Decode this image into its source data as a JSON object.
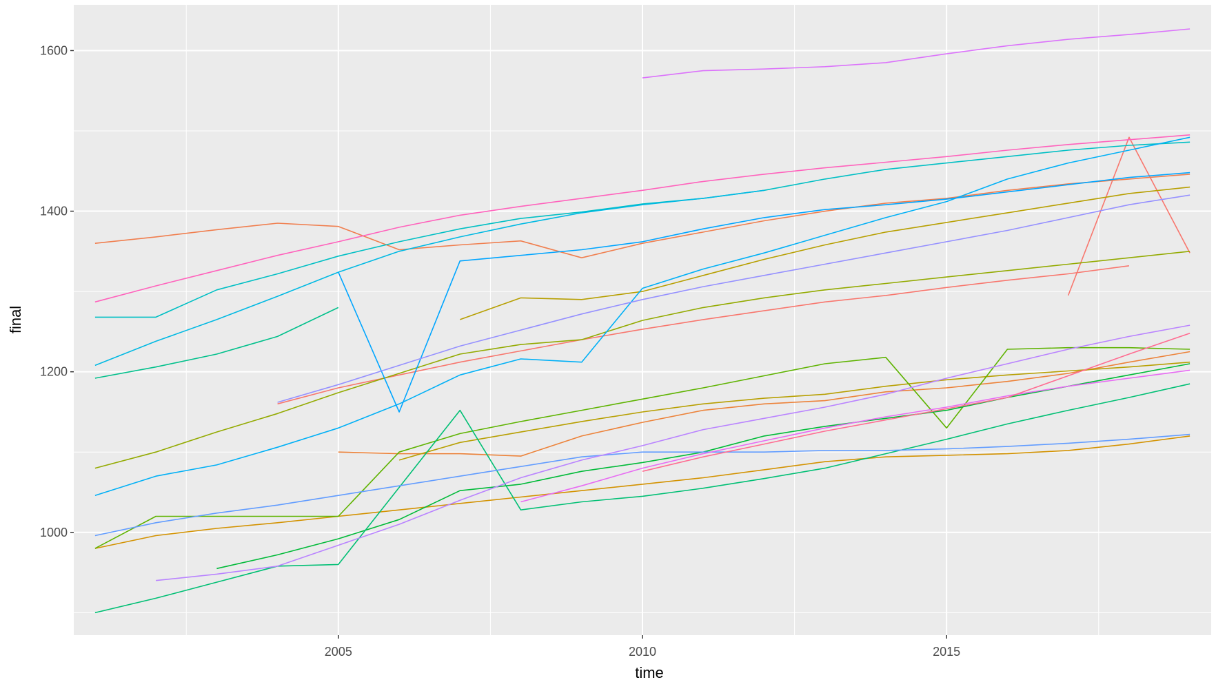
{
  "chart_data": {
    "type": "line",
    "title": "",
    "xlabel": "time",
    "ylabel": "final",
    "xlim": [
      2000.65,
      2019.35
    ],
    "ylim": [
      872,
      1657
    ],
    "x_ticks": [
      2005,
      2010,
      2015
    ],
    "x_tick_labels": [
      "2005",
      "2010",
      "2015"
    ],
    "y_ticks": [
      1000,
      1200,
      1400,
      1600
    ],
    "y_tick_labels": [
      "1000",
      "1200",
      "1400",
      "1600"
    ],
    "grid": true,
    "legend": "none",
    "background": "#ebebeb",
    "series": [
      {
        "color": "#F8766D",
        "x": [
          2017,
          2018,
          2019
        ],
        "y": [
          1295,
          1492,
          1348
        ]
      },
      {
        "color": "#F07E4E",
        "x": [
          2001,
          2002,
          2003,
          2004,
          2005,
          2006,
          2007,
          2008,
          2009,
          2010,
          2011,
          2012,
          2013,
          2014,
          2015,
          2016,
          2017,
          2018,
          2019
        ],
        "y": [
          1360,
          1368,
          1377,
          1385,
          1381,
          1352,
          1358,
          1363,
          1342,
          1360,
          1374,
          1388,
          1400,
          1410,
          1416,
          1426,
          1434,
          1440,
          1446
        ]
      },
      {
        "color": "#EC8239",
        "x": [
          2005,
          2006,
          2007,
          2008,
          2009,
          2010,
          2011,
          2012,
          2013,
          2014,
          2015,
          2016,
          2017,
          2018,
          2019
        ],
        "y": [
          1100,
          1098,
          1098,
          1095,
          1120,
          1137,
          1152,
          1160,
          1164,
          1175,
          1180,
          1188,
          1198,
          1212,
          1225
        ]
      },
      {
        "color": "#F8766D",
        "x": [
          2004,
          2005,
          2006,
          2007,
          2008,
          2009,
          2010,
          2011,
          2012,
          2013,
          2014,
          2015,
          2016,
          2017,
          2018
        ],
        "y": [
          1160,
          1180,
          1196,
          1212,
          1226,
          1240,
          1253,
          1265,
          1276,
          1287,
          1295,
          1305,
          1314,
          1322,
          1332
        ]
      },
      {
        "color": "#D39200",
        "x": [
          2001,
          2002,
          2003,
          2004,
          2005,
          2006,
          2007,
          2008,
          2009,
          2010,
          2011,
          2012,
          2013,
          2014,
          2015,
          2016,
          2017,
          2018,
          2019
        ],
        "y": [
          980,
          996,
          1005,
          1012,
          1020,
          1028,
          1036,
          1044,
          1052,
          1060,
          1068,
          1078,
          1088,
          1094,
          1096,
          1098,
          1102,
          1110,
          1120
        ]
      },
      {
        "color": "#B79F00",
        "x": [
          2006,
          2007,
          2008,
          2009,
          2010,
          2011,
          2012,
          2013,
          2014,
          2015,
          2016,
          2017,
          2018,
          2019
        ],
        "y": [
          1090,
          1112,
          1125,
          1138,
          1150,
          1160,
          1167,
          1172,
          1182,
          1190,
          1196,
          1201,
          1206,
          1212
        ]
      },
      {
        "color": "#B79F00",
        "x": [
          2007,
          2008,
          2009,
          2010,
          2011,
          2012,
          2013,
          2014,
          2015,
          2016,
          2017,
          2018,
          2019
        ],
        "y": [
          1265,
          1292,
          1290,
          1300,
          1320,
          1340,
          1358,
          1374,
          1386,
          1398,
          1410,
          1422,
          1430
        ]
      },
      {
        "color": "#93AA00",
        "x": [
          2001,
          2002,
          2003,
          2004,
          2005,
          2006,
          2007,
          2008,
          2009,
          2010,
          2011,
          2012,
          2013,
          2014,
          2015,
          2016,
          2017,
          2018,
          2019
        ],
        "y": [
          1080,
          1100,
          1125,
          1148,
          1174,
          1198,
          1222,
          1234,
          1240,
          1264,
          1280,
          1292,
          1302,
          1310,
          1318,
          1326,
          1334,
          1342,
          1350
        ]
      },
      {
        "color": "#5EB300",
        "x": [
          2001,
          2002,
          2003,
          2004,
          2005,
          2006,
          2007,
          2008,
          2009,
          2010,
          2011,
          2012,
          2013,
          2014,
          2015,
          2016,
          2017,
          2018,
          2019
        ],
        "y": [
          980,
          1020,
          1020,
          1020,
          1020,
          1100,
          1123,
          1138,
          1152,
          1166,
          1180,
          1195,
          1210,
          1218,
          1130,
          1228,
          1230,
          1230,
          1228
        ]
      },
      {
        "color": "#00BA38",
        "x": [
          2003,
          2004,
          2005,
          2006,
          2007,
          2008,
          2009,
          2010,
          2011,
          2012,
          2013,
          2014,
          2015,
          2016,
          2017,
          2018,
          2019
        ],
        "y": [
          955,
          972,
          992,
          1016,
          1052,
          1060,
          1076,
          1087,
          1100,
          1120,
          1132,
          1142,
          1152,
          1168,
          1182,
          1196,
          1210
        ]
      },
      {
        "color": "#00BF74",
        "x": [
          2001,
          2002,
          2003,
          2004,
          2005,
          2006,
          2007,
          2008,
          2009,
          2010,
          2011,
          2012,
          2013,
          2014,
          2015,
          2016,
          2017,
          2018,
          2019
        ],
        "y": [
          900,
          918,
          938,
          958,
          960,
          1056,
          1152,
          1028,
          1038,
          1045,
          1055,
          1067,
          1080,
          1098,
          1116,
          1135,
          1152,
          1168,
          1185
        ]
      },
      {
        "color": "#00C08B",
        "x": [
          2001,
          2002,
          2003,
          2004,
          2005
        ],
        "y": [
          1192,
          1206,
          1222,
          1244,
          1280
        ]
      },
      {
        "color": "#00BFC4",
        "x": [
          2001,
          2002,
          2003,
          2004,
          2005,
          2006,
          2007,
          2008,
          2009,
          2010,
          2011,
          2012,
          2013,
          2014,
          2015,
          2016,
          2017,
          2018,
          2019
        ],
        "y": [
          1268,
          1268,
          1302,
          1322,
          1344,
          1362,
          1378,
          1391,
          1399,
          1409,
          1416,
          1426,
          1440,
          1452,
          1460,
          1468,
          1476,
          1482,
          1486
        ]
      },
      {
        "color": "#00B9E3",
        "x": [
          2001,
          2002,
          2003,
          2004,
          2005,
          2006,
          2007,
          2008,
          2009,
          2010,
          2011,
          2012
        ],
        "y": [
          1208,
          1238,
          1265,
          1294,
          1324,
          1350,
          1368,
          1384,
          1398,
          1408,
          1416,
          1426
        ]
      },
      {
        "color": "#00B0F6",
        "x": [
          2001,
          2002,
          2003,
          2004,
          2005,
          2006,
          2007,
          2008,
          2009,
          2010,
          2011,
          2012,
          2013,
          2014,
          2015,
          2016,
          2017,
          2018,
          2019
        ],
        "y": [
          1046,
          1070,
          1084,
          1106,
          1130,
          1160,
          1196,
          1216,
          1212,
          1304,
          1328,
          1348,
          1370,
          1392,
          1412,
          1440,
          1460,
          1476,
          1492
        ]
      },
      {
        "color": "#00A5FF",
        "x": [
          2005,
          2006,
          2007,
          2008,
          2009,
          2010,
          2011,
          2012,
          2013,
          2014,
          2015,
          2016,
          2017,
          2018,
          2019
        ],
        "y": [
          1324,
          1150,
          1338,
          1345,
          1352,
          1362,
          1378,
          1392,
          1402,
          1408,
          1415,
          1424,
          1433,
          1442,
          1448
        ]
      },
      {
        "color": "#619CFF",
        "x": [
          2001,
          2002,
          2003,
          2004,
          2005,
          2006,
          2007,
          2008,
          2009,
          2010,
          2011,
          2012,
          2013,
          2014,
          2015,
          2016,
          2017,
          2018,
          2019
        ],
        "y": [
          996,
          1012,
          1024,
          1034,
          1046,
          1058,
          1070,
          1082,
          1094,
          1100,
          1100,
          1100,
          1102,
          1102,
          1104,
          1107,
          1111,
          1116,
          1122
        ]
      },
      {
        "color": "#9590FF",
        "x": [
          2004,
          2005,
          2006,
          2007,
          2008,
          2009,
          2010,
          2011,
          2012,
          2013,
          2014,
          2015,
          2016,
          2017,
          2018,
          2019
        ],
        "y": [
          1162,
          1184,
          1208,
          1232,
          1252,
          1272,
          1290,
          1306,
          1320,
          1334,
          1348,
          1362,
          1376,
          1392,
          1408,
          1420
        ]
      },
      {
        "color": "#B983FF",
        "x": [
          2002,
          2003,
          2004,
          2005,
          2006,
          2007,
          2008,
          2009,
          2010,
          2011,
          2012,
          2013,
          2014,
          2015,
          2016,
          2017,
          2018,
          2019
        ],
        "y": [
          940,
          948,
          958,
          984,
          1010,
          1040,
          1068,
          1090,
          1108,
          1128,
          1142,
          1156,
          1172,
          1192,
          1210,
          1228,
          1244,
          1258
        ]
      },
      {
        "color": "#DB72FB",
        "x": [
          2010,
          2011,
          2012,
          2013,
          2014,
          2015,
          2016,
          2017,
          2018,
          2019
        ],
        "y": [
          1566,
          1575,
          1577,
          1580,
          1585,
          1596,
          1606,
          1614,
          1620,
          1627
        ]
      },
      {
        "color": "#E76BF3",
        "x": [
          2008,
          2009,
          2010,
          2011,
          2012,
          2013,
          2014,
          2015,
          2016,
          2017,
          2018,
          2019
        ],
        "y": [
          1038,
          1058,
          1080,
          1098,
          1114,
          1130,
          1144,
          1156,
          1170,
          1182,
          1192,
          1202
        ]
      },
      {
        "color": "#FF62BC",
        "x": [
          2001,
          2002,
          2003,
          2004,
          2005,
          2006,
          2007,
          2008,
          2009,
          2010,
          2011,
          2012,
          2013,
          2014,
          2015,
          2016,
          2017,
          2018,
          2019
        ],
        "y": [
          1287,
          1307,
          1326,
          1345,
          1362,
          1380,
          1395,
          1406,
          1416,
          1426,
          1437,
          1446,
          1454,
          1461,
          1468,
          1476,
          1483,
          1489,
          1495
        ]
      },
      {
        "color": "#FF6C91",
        "x": [
          2010,
          2011,
          2012,
          2013,
          2014,
          2015,
          2016,
          2017,
          2018,
          2019
        ],
        "y": [
          1076,
          1094,
          1110,
          1126,
          1140,
          1154,
          1168,
          1195,
          1222,
          1248
        ]
      }
    ]
  }
}
